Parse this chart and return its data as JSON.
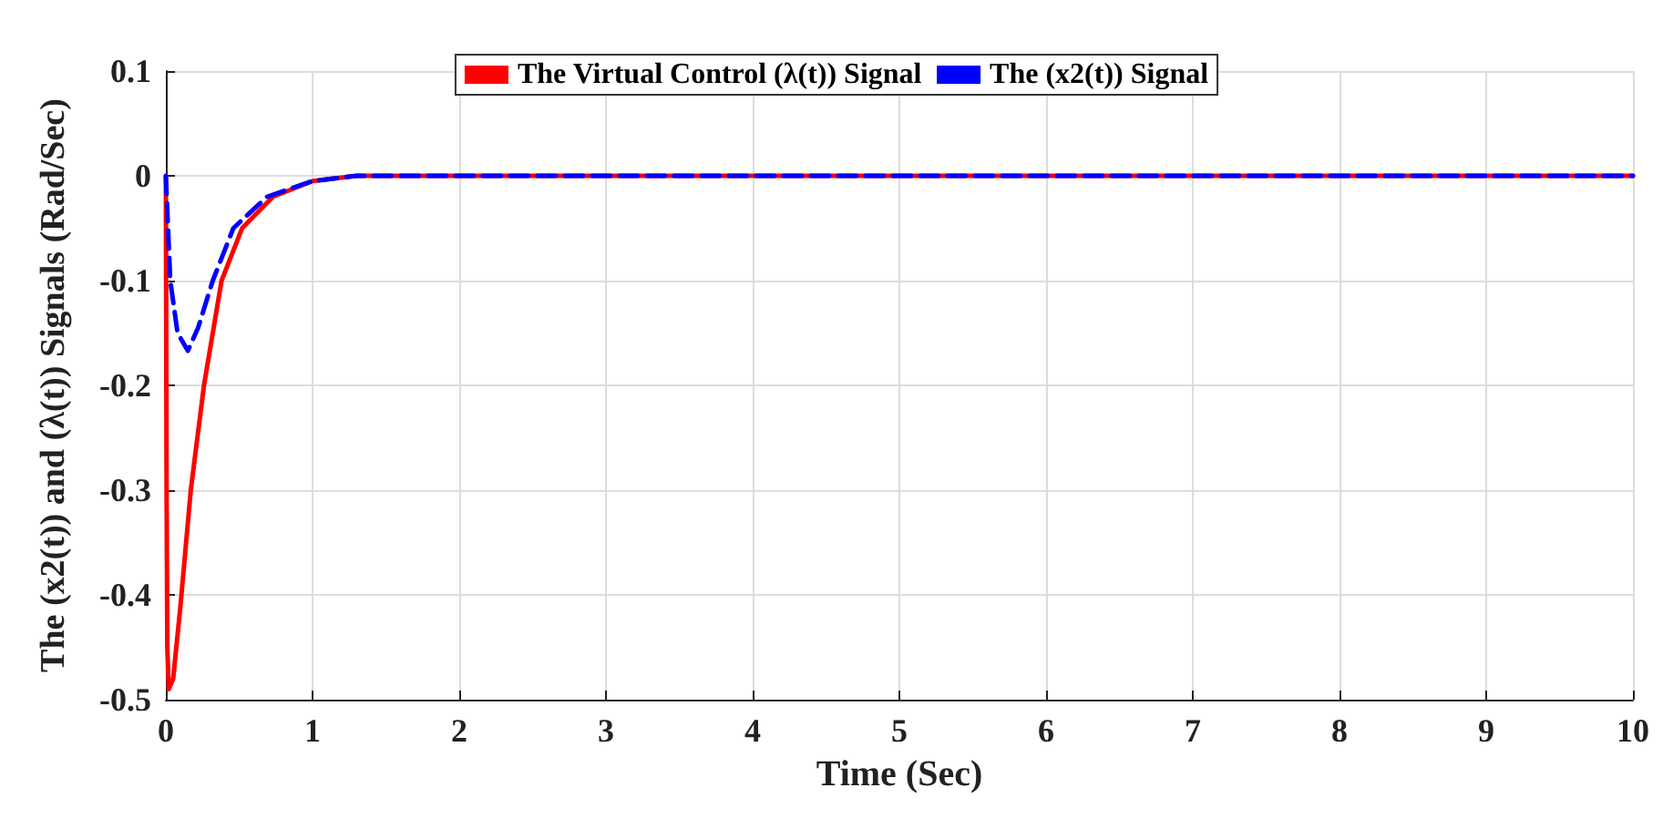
{
  "chart_data": {
    "type": "line",
    "xlabel": "Time (Sec)",
    "ylabel": "The (x2(t)) and (λ(t)) Signals (Rad/Sec)",
    "xlim": [
      0,
      10
    ],
    "xticks": [
      0,
      1,
      2,
      3,
      4,
      5,
      6,
      7,
      8,
      9,
      10
    ],
    "ylim": [
      -0.5,
      0.1
    ],
    "yticks": [
      -0.5,
      -0.4,
      -0.3,
      -0.2,
      -0.1,
      0,
      0.1
    ],
    "grid": true,
    "legend": "top",
    "series": [
      {
        "name": "The Virtual Control (λ(t)) Signal",
        "color": "#ff0000",
        "line_style": "solid",
        "x": [
          0,
          0.005,
          0.01,
          0.02,
          0.05,
          0.1,
          0.17,
          0.26,
          0.38,
          0.52,
          0.73,
          1.0,
          1.3,
          2,
          3,
          4,
          5,
          6,
          7,
          8,
          9,
          10
        ],
        "values": [
          0,
          -0.3,
          -0.45,
          -0.49,
          -0.48,
          -0.41,
          -0.3,
          -0.2,
          -0.1,
          -0.05,
          -0.02,
          -0.005,
          0,
          0,
          0,
          0,
          0,
          0,
          0,
          0,
          0,
          0
        ]
      },
      {
        "name": "The (x2(t)) Signal",
        "color": "#0000ff",
        "line_style": "dashed",
        "x": [
          0,
          0.03,
          0.08,
          0.15,
          0.22,
          0.32,
          0.46,
          0.69,
          1.0,
          1.3,
          2,
          3,
          4,
          5,
          6,
          7,
          8,
          9,
          10
        ],
        "values": [
          0,
          -0.1,
          -0.15,
          -0.167,
          -0.145,
          -0.1,
          -0.05,
          -0.02,
          -0.005,
          0,
          0,
          0,
          0,
          0,
          0,
          0,
          0,
          0,
          0
        ]
      }
    ]
  }
}
